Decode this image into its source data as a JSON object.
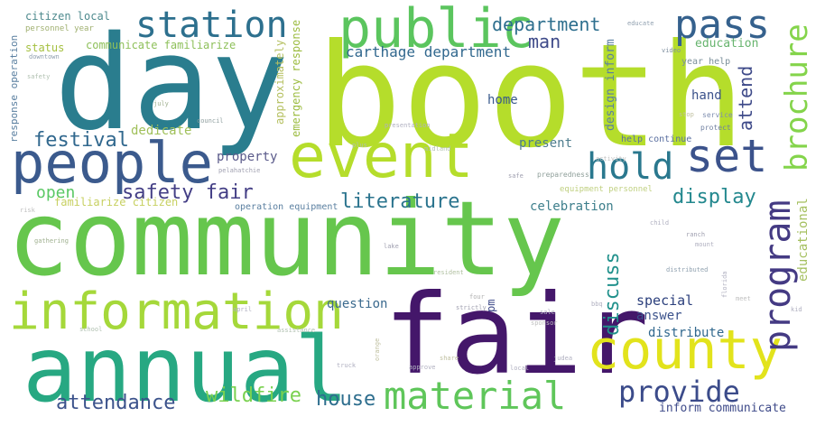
{
  "words": [
    {
      "text": "community",
      "color": "#66c64d"
    },
    {
      "text": "booth",
      "color": "#b5dd2b"
    },
    {
      "text": "day",
      "color": "#2a7d8e"
    },
    {
      "text": "fair",
      "color": "#44176a"
    },
    {
      "text": "annual",
      "color": "#27a882"
    },
    {
      "text": "event",
      "color": "#b5dd2b"
    },
    {
      "text": "information",
      "color": "#a5d83a"
    },
    {
      "text": "people",
      "color": "#3b5a8d"
    },
    {
      "text": "county",
      "color": "#e2e31c"
    },
    {
      "text": "public",
      "color": "#5bc55e"
    },
    {
      "text": "material",
      "color": "#5fc65a"
    },
    {
      "text": "station",
      "color": "#2d708e"
    },
    {
      "text": "pass",
      "color": "#35618d"
    },
    {
      "text": "set",
      "color": "#3b528b"
    },
    {
      "text": "program",
      "color": "#443a83"
    },
    {
      "text": "hold",
      "color": "#2a788e"
    },
    {
      "text": "brochure",
      "color": "#84d44b"
    },
    {
      "text": "provide",
      "color": "#3b4b8a"
    },
    {
      "text": "wildfire",
      "color": "#7ad150"
    },
    {
      "text": "house",
      "color": "#2e6e8e"
    },
    {
      "text": "attendance",
      "color": "#3b528b"
    },
    {
      "text": "safety fair",
      "color": "#433e85"
    },
    {
      "text": "festival",
      "color": "#31688e"
    },
    {
      "text": "literature",
      "color": "#2b748e"
    },
    {
      "text": "display",
      "color": "#23888e"
    },
    {
      "text": "discuss",
      "color": "#21918c"
    },
    {
      "text": "department",
      "color": "#2e6f8e"
    },
    {
      "text": "man",
      "color": "#3e4a89"
    },
    {
      "text": "carthage department",
      "color": "#31688e"
    },
    {
      "text": "attend",
      "color": "#3e4a89"
    },
    {
      "text": "open",
      "color": "#5ac864"
    },
    {
      "text": "celebration",
      "color": "#3e7f8c"
    },
    {
      "text": "home",
      "color": "#38598c"
    },
    {
      "text": "question",
      "color": "#3b6a8e"
    },
    {
      "text": "special",
      "color": "#2b3f7c"
    },
    {
      "text": "answer",
      "color": "#3b528b"
    },
    {
      "text": "distribute",
      "color": "#31688e"
    },
    {
      "text": "present",
      "color": "#4e7d8e"
    },
    {
      "text": "property",
      "color": "#5a5a8a"
    },
    {
      "text": "dedicate",
      "color": "#a0c05a"
    },
    {
      "text": "hand",
      "color": "#3b528b"
    },
    {
      "text": "design inform",
      "color": "#5a7fa0"
    },
    {
      "text": "education",
      "color": "#67b46e"
    },
    {
      "text": "educational",
      "color": "#a5c060"
    },
    {
      "text": "inform communicate",
      "color": "#3e4a89"
    },
    {
      "text": "communicate familiarize",
      "color": "#8ec05a"
    },
    {
      "text": "citizen local",
      "color": "#4e8a8e"
    },
    {
      "text": "status",
      "color": "#a5c040"
    },
    {
      "text": "familiarize citizen",
      "color": "#c7d060"
    },
    {
      "text": "response operation",
      "color": "#5a7fa0"
    },
    {
      "text": "emergency response",
      "color": "#9cbc40"
    },
    {
      "text": "approximately",
      "color": "#b5c060"
    },
    {
      "text": "operation equipment",
      "color": "#5a7fa0"
    },
    {
      "text": "help continue",
      "color": "#5a6fa0"
    },
    {
      "text": "equipment personnel",
      "color": "#c0d080"
    },
    {
      "text": "year help",
      "color": "#7a8f9a"
    },
    {
      "text": "preparedness",
      "color": "#8f9f9a"
    },
    {
      "text": "personnel year",
      "color": "#a0b070"
    },
    {
      "text": "service",
      "color": "#7f8fb0"
    },
    {
      "text": "protect",
      "color": "#6f7fa0"
    },
    {
      "text": "educate",
      "color": "#8f9faf"
    },
    {
      "text": "video",
      "color": "#7f8f9f"
    },
    {
      "text": "distributed",
      "color": "#8fa0af"
    },
    {
      "text": "gathering",
      "color": "#9fb08f"
    },
    {
      "text": "resident",
      "color": "#b0c0a0"
    },
    {
      "text": "council",
      "color": "#8f9f9f"
    },
    {
      "text": "july",
      "color": "#a0b08f"
    },
    {
      "text": "downtown",
      "color": "#8f9faf"
    },
    {
      "text": "safety",
      "color": "#b0c0b0"
    },
    {
      "text": "presentation",
      "color": "#b0b0c0"
    },
    {
      "text": "plus",
      "color": "#b0c0b0"
    },
    {
      "text": "safe",
      "color": "#a0a0b0"
    },
    {
      "text": "activity",
      "color": "#c0c0c0"
    },
    {
      "text": "child",
      "color": "#b0b0c0"
    },
    {
      "text": "ranch",
      "color": "#a0a0b0"
    },
    {
      "text": "lake",
      "color": "#a0a0b0"
    },
    {
      "text": "kid",
      "color": "#b0b0c0"
    },
    {
      "text": "risk",
      "color": "#c0c0c0"
    },
    {
      "text": "school",
      "color": "#b0c0b0"
    },
    {
      "text": "april",
      "color": "#b0b0c0"
    },
    {
      "text": "assistance",
      "color": "#b0c0b0"
    },
    {
      "text": "strictly",
      "color": "#a0a0b0"
    },
    {
      "text": "sponsor",
      "color": "#c0c0c0"
    },
    {
      "text": "truck",
      "color": "#b0b0c0"
    },
    {
      "text": "approve",
      "color": "#b0b0c0"
    },
    {
      "text": "share",
      "color": "#c0c0a0"
    },
    {
      "text": "local",
      "color": "#b0b0c0"
    },
    {
      "text": "judea",
      "color": "#b0b0c0"
    },
    {
      "text": "bbq",
      "color": "#b0b0c0"
    },
    {
      "text": "stop",
      "color": "#c0c0a0"
    },
    {
      "text": "midland",
      "color": "#b0c0b0"
    },
    {
      "text": "pelahatchie",
      "color": "#a0a0b0"
    },
    {
      "text": "orange",
      "color": "#c0c0a0"
    },
    {
      "text": "four",
      "color": "#b0b0b0"
    },
    {
      "text": "sale",
      "color": "#b0b0c0"
    },
    {
      "text": "mount",
      "color": "#b0b0c0"
    },
    {
      "text": "florida",
      "color": "#b0b0c0"
    },
    {
      "text": "meet",
      "color": "#c0c0c0"
    },
    {
      "text": "pm",
      "color": "#3e4a89"
    }
  ]
}
